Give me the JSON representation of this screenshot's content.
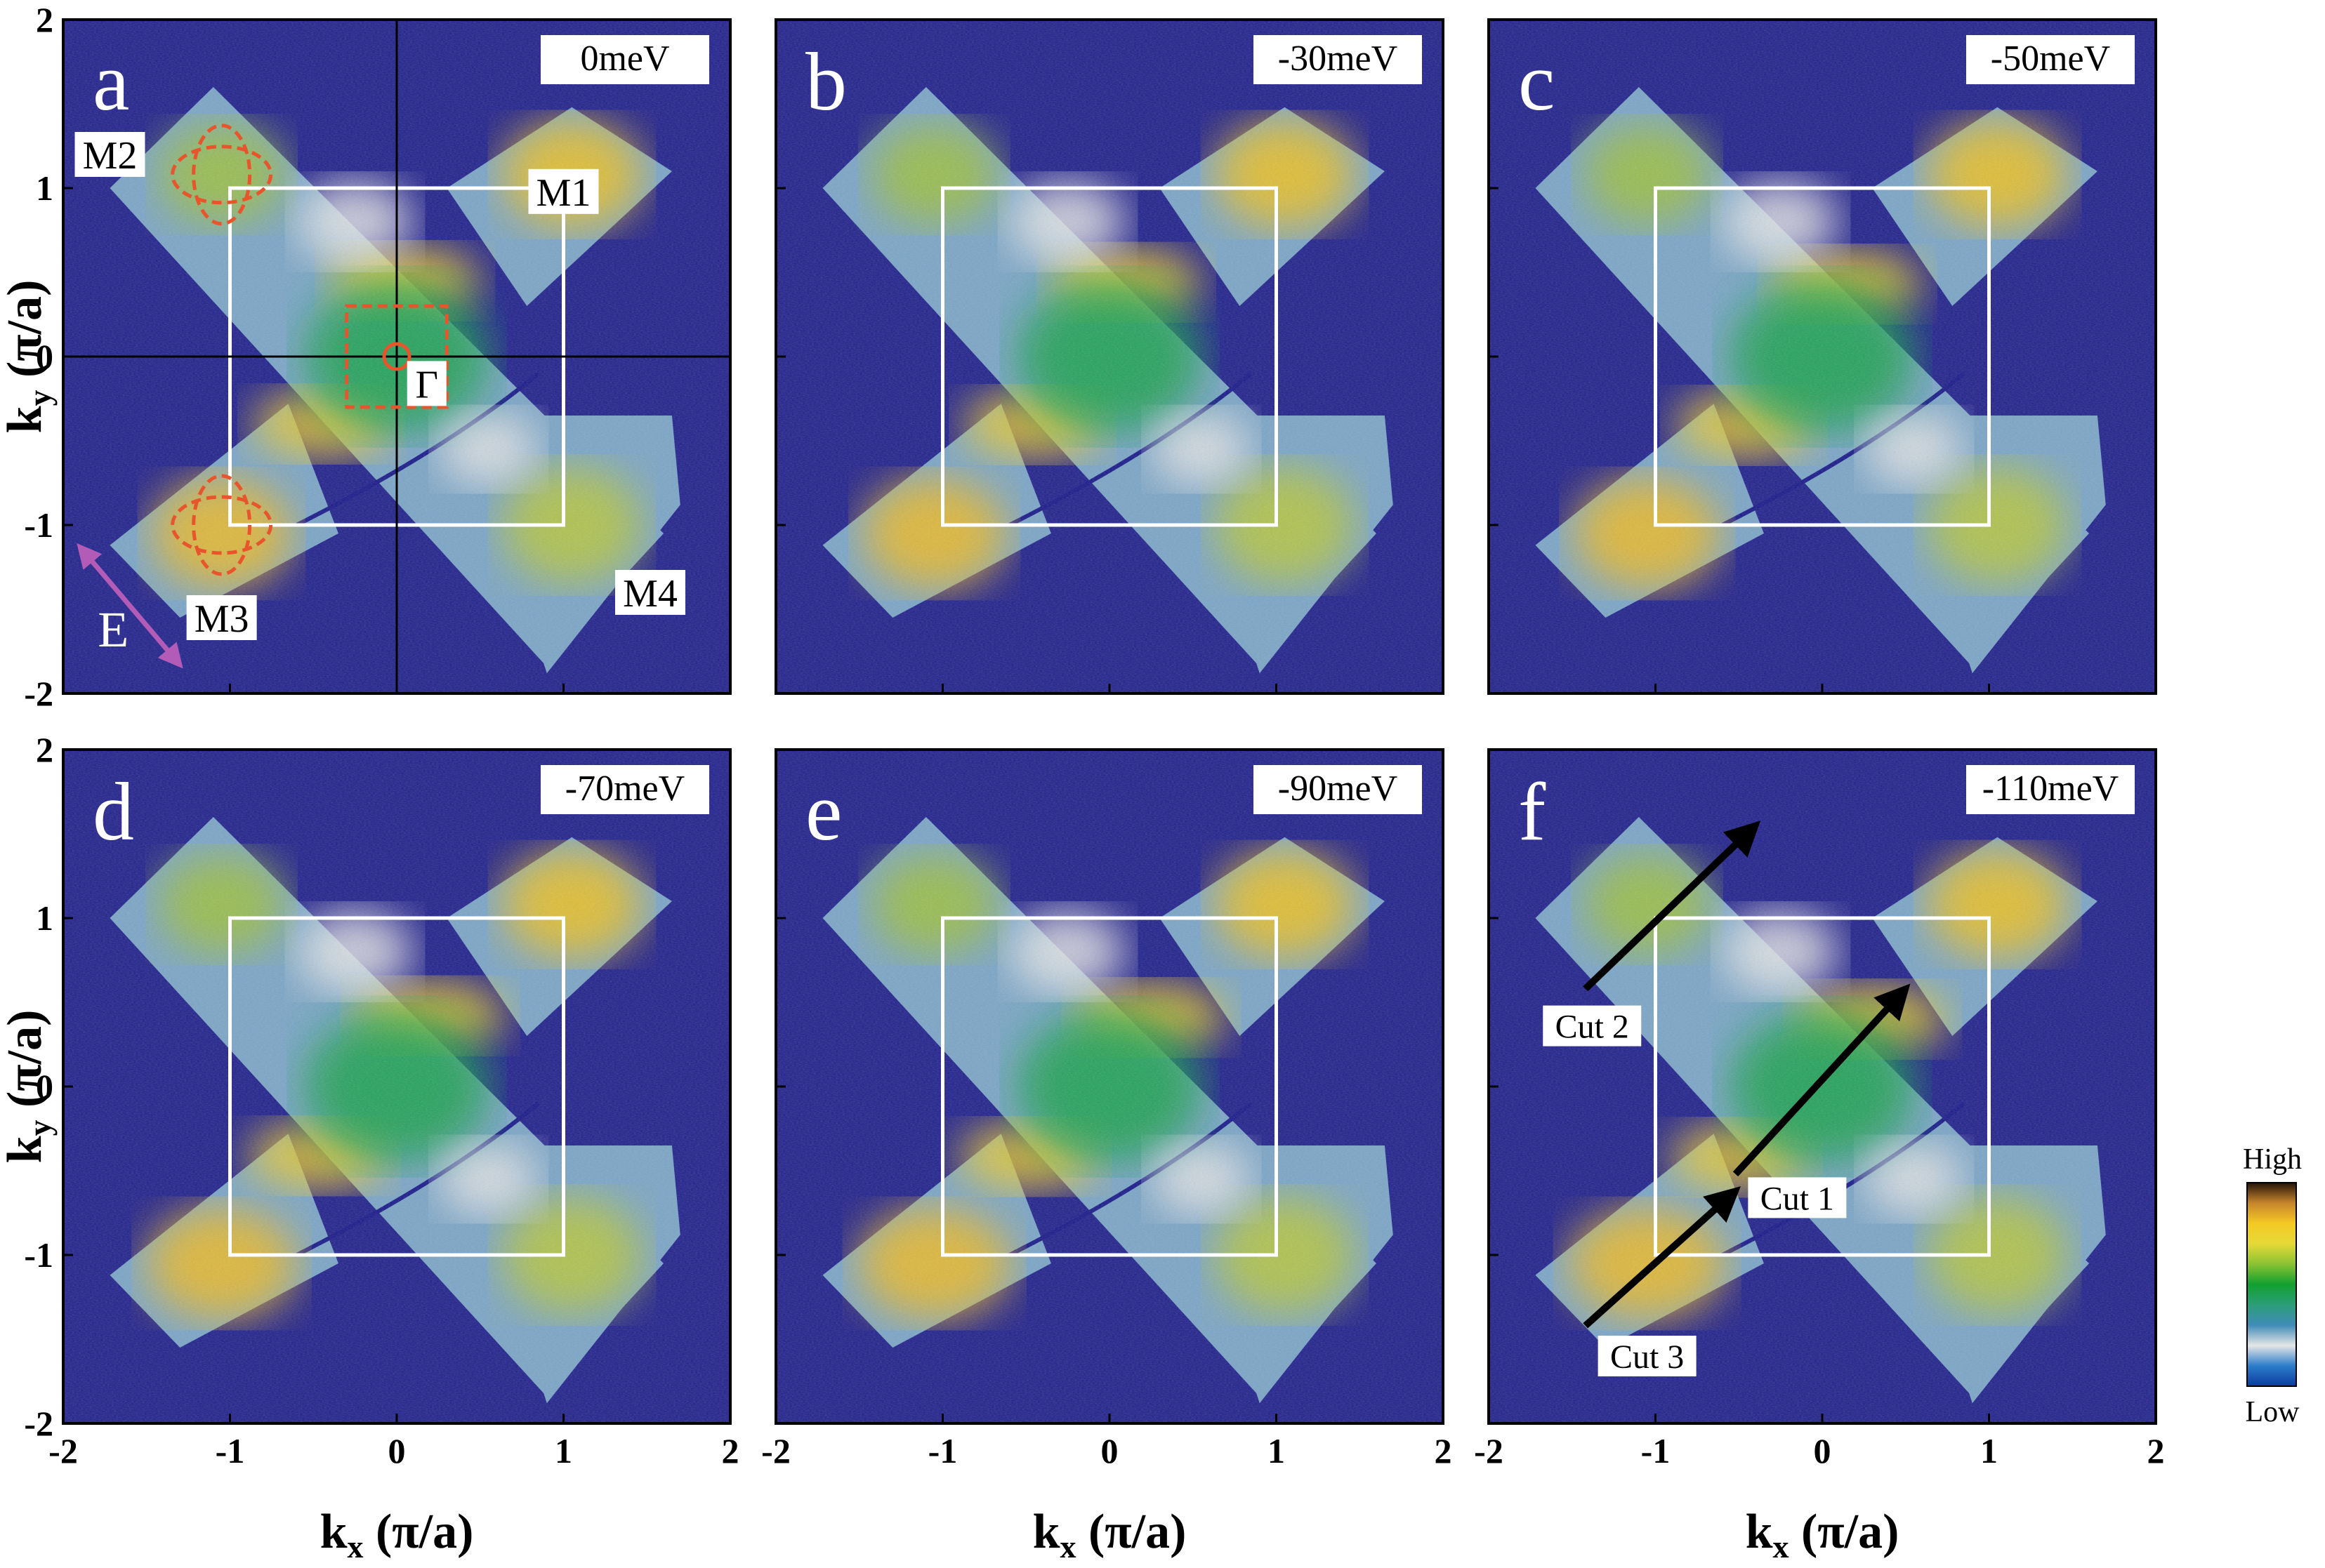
{
  "chart_data": {
    "type": "heatmap",
    "layout": "2x3 panel grid",
    "x_axis": {
      "label_main": "k",
      "label_sub": "x",
      "label_unit": " (π/a)",
      "range": [
        -2,
        2
      ],
      "ticks": [
        "-2",
        "-1",
        "0",
        "1",
        "2"
      ]
    },
    "y_axis": {
      "label_main": "k",
      "label_sub": "y",
      "label_unit": " (π/a)",
      "range": [
        -2,
        2
      ],
      "ticks": [
        "-2",
        "-1",
        "0",
        "1",
        "2"
      ]
    },
    "brillouin_zone": {
      "x": [
        -1,
        1
      ],
      "y": [
        -1,
        1
      ]
    },
    "panels": [
      {
        "letter": "a",
        "energy": "0meV"
      },
      {
        "letter": "b",
        "energy": "-30meV"
      },
      {
        "letter": "c",
        "energy": "-50meV"
      },
      {
        "letter": "d",
        "energy": "-70meV"
      },
      {
        "letter": "e",
        "energy": "-90meV"
      },
      {
        "letter": "f",
        "energy": "-110meV"
      }
    ],
    "high_symmetry_points": [
      {
        "label": "M1",
        "x": 1.0,
        "y": 0.98
      },
      {
        "label": "M2",
        "x": -1.72,
        "y": 1.2
      },
      {
        "label": "M3",
        "x": -1.05,
        "y": -1.55
      },
      {
        "label": "M4",
        "x": 1.52,
        "y": -1.4
      },
      {
        "label": "Γ",
        "x": 0.18,
        "y": -0.16
      }
    ],
    "polarization": {
      "label": "E",
      "from": [
        -1.9,
        -1.13
      ],
      "to": [
        -1.3,
        -1.83
      ]
    },
    "cuts": [
      {
        "label": "Cut 1",
        "from": [
          -0.52,
          -0.52
        ],
        "to": [
          0.5,
          0.58
        ]
      },
      {
        "label": "Cut 2",
        "from": [
          -1.42,
          0.58
        ],
        "to": [
          -0.4,
          1.55
        ]
      },
      {
        "label": "Cut 3",
        "from": [
          -1.42,
          -1.42
        ],
        "to": [
          -0.52,
          -0.62
        ]
      }
    ],
    "colorbar": {
      "top_label": "High",
      "bottom_label": "Low",
      "colors": [
        "#231407",
        "#c7852d",
        "#f5c924",
        "#e5d938",
        "#8ac232",
        "#11a02f",
        "#2c9e79",
        "#3f8cb7",
        "#e6e6e6",
        "#2b7dca",
        "#0d3aa1"
      ]
    },
    "colors": {
      "background": "#1f1f8c",
      "bz_outline": "#ffffff",
      "pocket_outline": "#e8542b",
      "polarization_arrow": "#b25cb8",
      "cut_arrow": "#000000"
    }
  }
}
